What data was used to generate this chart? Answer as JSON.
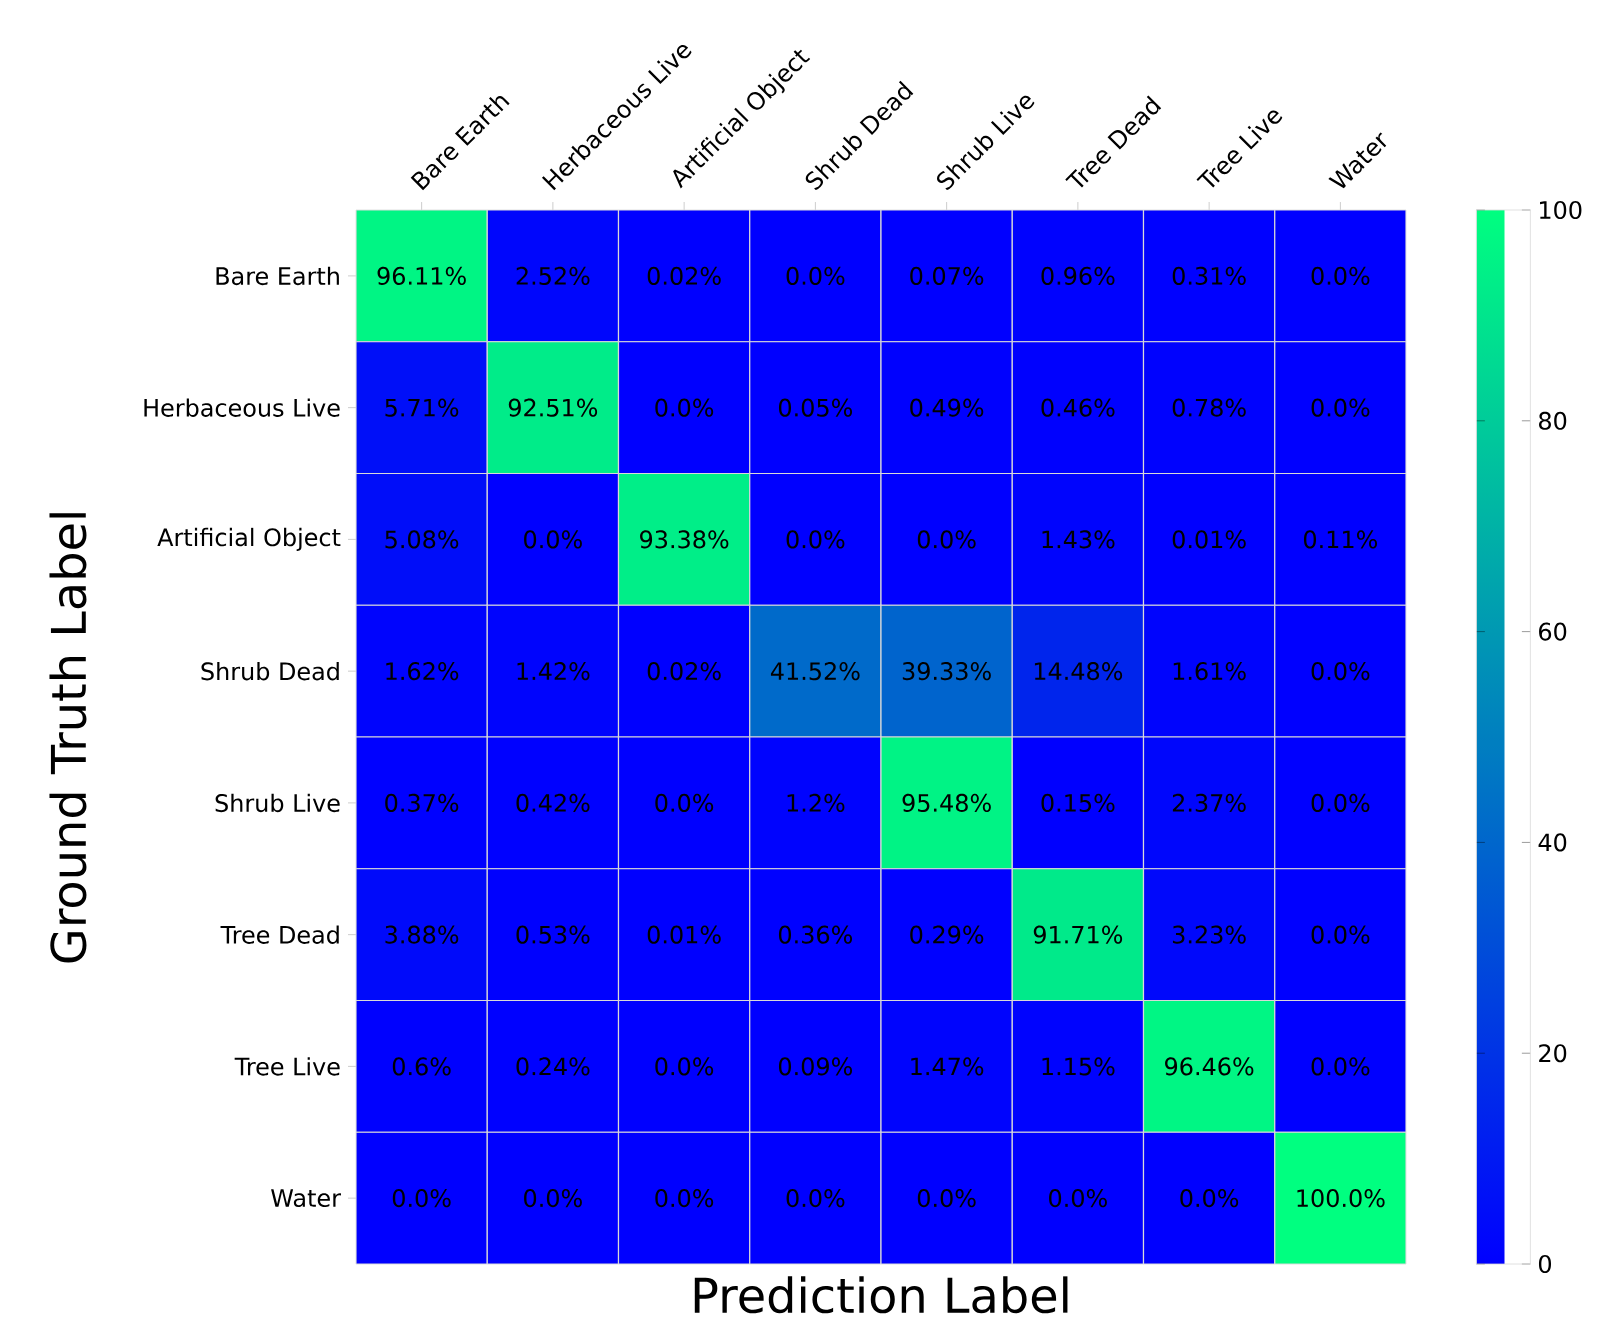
{
  "chart_data": {
    "type": "heatmap",
    "xlabel": "Prediction Label",
    "ylabel": "Ground Truth Label",
    "categories": [
      "Bare Earth",
      "Herbaceous Live",
      "Artificial Object",
      "Shrub Dead",
      "Shrub Live",
      "Tree Dead",
      "Tree Live",
      "Water"
    ],
    "y_categories": [
      "Bare Earth",
      "Herbaceous Live",
      "Artificial Object",
      "Shrub Dead",
      "Shrub Live",
      "Tree Dead",
      "Tree Live",
      "Water"
    ],
    "cells": [
      [
        96.11,
        2.52,
        0.02,
        0.0,
        0.07,
        0.96,
        0.31,
        0.0
      ],
      [
        5.71,
        92.51,
        0.0,
        0.05,
        0.49,
        0.46,
        0.78,
        0.0
      ],
      [
        5.08,
        0.0,
        93.38,
        0.0,
        0.0,
        1.43,
        0.01,
        0.11
      ],
      [
        1.62,
        1.42,
        0.02,
        41.52,
        39.33,
        14.48,
        1.61,
        0.0
      ],
      [
        0.37,
        0.42,
        0.0,
        1.2,
        95.48,
        0.15,
        2.37,
        0.0
      ],
      [
        3.88,
        0.53,
        0.01,
        0.36,
        0.29,
        91.71,
        3.23,
        0.0
      ],
      [
        0.6,
        0.24,
        0.0,
        0.09,
        1.47,
        1.15,
        96.46,
        0.0
      ],
      [
        0.0,
        0.0,
        0.0,
        0.0,
        0.0,
        0.0,
        0.0,
        100.0
      ]
    ],
    "cell_labels": [
      [
        "96.11%",
        "2.52%",
        "0.02%",
        "0.0%",
        "0.07%",
        "0.96%",
        "0.31%",
        "0.0%"
      ],
      [
        "5.71%",
        "92.51%",
        "0.0%",
        "0.05%",
        "0.49%",
        "0.46%",
        "0.78%",
        "0.0%"
      ],
      [
        "5.08%",
        "0.0%",
        "93.38%",
        "0.0%",
        "0.0%",
        "1.43%",
        "0.01%",
        "0.11%"
      ],
      [
        "1.62%",
        "1.42%",
        "0.02%",
        "41.52%",
        "39.33%",
        "14.48%",
        "1.61%",
        "0.0%"
      ],
      [
        "0.37%",
        "0.42%",
        "0.0%",
        "1.2%",
        "95.48%",
        "0.15%",
        "2.37%",
        "0.0%"
      ],
      [
        "3.88%",
        "0.53%",
        "0.01%",
        "0.36%",
        "0.29%",
        "91.71%",
        "3.23%",
        "0.0%"
      ],
      [
        "0.6%",
        "0.24%",
        "0.0%",
        "0.09%",
        "1.47%",
        "1.15%",
        "96.46%",
        "0.0%"
      ],
      [
        "0.0%",
        "0.0%",
        "0.0%",
        "0.0%",
        "0.0%",
        "0.0%",
        "0.0%",
        "100.0%"
      ]
    ],
    "clim": [
      0,
      100
    ],
    "cticks": [
      0,
      20,
      40,
      60,
      80,
      100
    ]
  }
}
